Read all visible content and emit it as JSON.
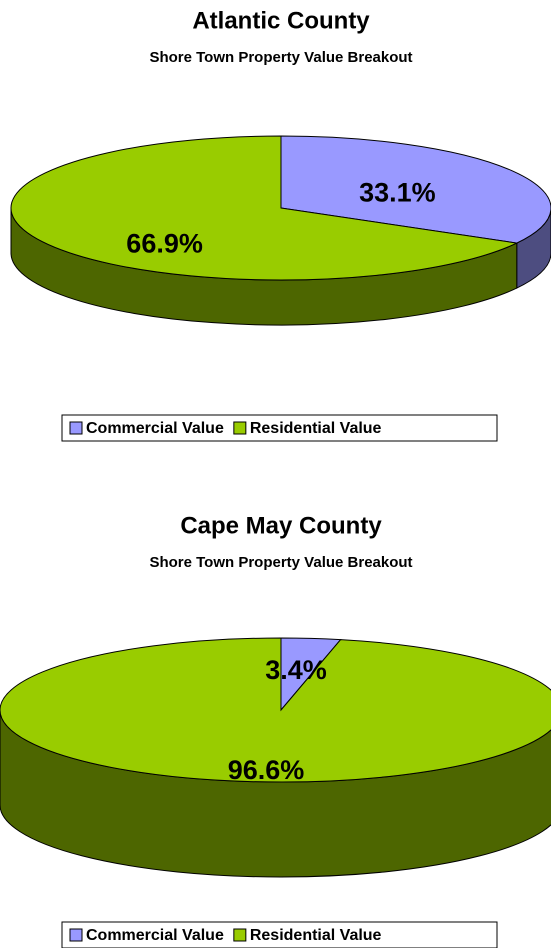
{
  "chart_data": [
    {
      "type": "pie3d",
      "title": "Atlantic County",
      "subtitle": "Shore Town Property Value Breakout",
      "categories": [
        "Commercial Value",
        "Residential Value"
      ],
      "values": [
        33.1,
        66.9
      ],
      "value_labels": [
        "33.1%",
        "66.9%"
      ],
      "colors": [
        "#9999ff",
        "#99cc00"
      ],
      "legend": "bottom"
    },
    {
      "type": "pie3d",
      "title": "Cape May County",
      "subtitle": "Shore Town Property Value Breakout",
      "categories": [
        "Commercial Value",
        "Residential Value"
      ],
      "values": [
        3.4,
        96.6
      ],
      "value_labels": [
        "3.4%",
        "96.6%"
      ],
      "colors": [
        "#9999ff",
        "#99cc00"
      ],
      "legend": "bottom"
    }
  ]
}
